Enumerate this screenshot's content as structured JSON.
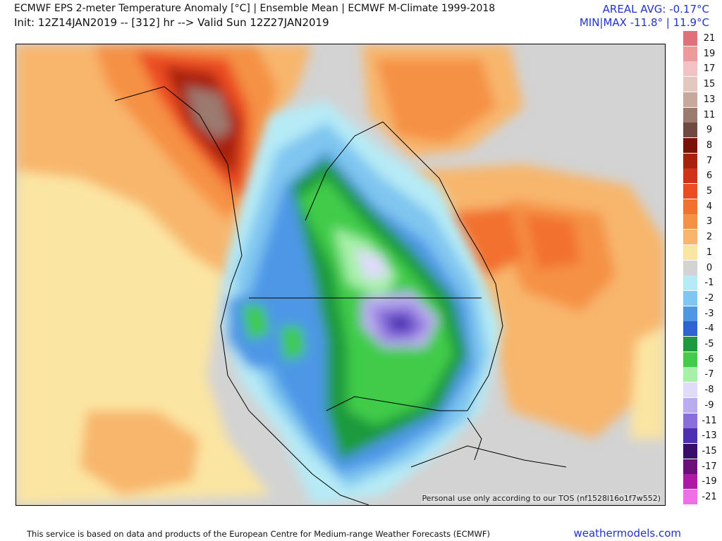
{
  "header": {
    "title": "ECMWF EPS 2-meter Temperature Anomaly [°C] | Ensemble Mean | ECMWF M-Climate 1999-2018",
    "init": "Init: 12Z14JAN2019 -- [312] hr --> Valid Sun 12Z27JAN2019",
    "areal_avg": "AREAL AVG: -0.17°C",
    "min_max": "MIN|MAX -11.8° | 11.9°C"
  },
  "map": {
    "watermark": "Personal use only according to our TOS (nf1528l16o1f7w552)"
  },
  "legend": {
    "items": [
      {
        "label": "21",
        "color": "#e0707a"
      },
      {
        "label": "19",
        "color": "#ed9a9a"
      },
      {
        "label": "17",
        "color": "#f4c2c2"
      },
      {
        "label": "15",
        "color": "#e3c8bf"
      },
      {
        "label": "13",
        "color": "#c8a89c"
      },
      {
        "label": "11",
        "color": "#9b7a70"
      },
      {
        "label": "9",
        "color": "#6e4a42"
      },
      {
        "label": "8",
        "color": "#7a1208"
      },
      {
        "label": "7",
        "color": "#a8200e"
      },
      {
        "label": "6",
        "color": "#cf3216"
      },
      {
        "label": "5",
        "color": "#eb4c21"
      },
      {
        "label": "4",
        "color": "#f2712e"
      },
      {
        "label": "3",
        "color": "#f59145"
      },
      {
        "label": "2",
        "color": "#f8b66c"
      },
      {
        "label": "1",
        "color": "#fbe5a2"
      },
      {
        "label": "0",
        "color": "#d3d3d3"
      },
      {
        "label": "-1",
        "color": "#b6ebf6"
      },
      {
        "label": "-2",
        "color": "#7fc6f0"
      },
      {
        "label": "-3",
        "color": "#4d97e6"
      },
      {
        "label": "-4",
        "color": "#2d63d3"
      },
      {
        "label": "-5",
        "color": "#1e9a3c"
      },
      {
        "label": "-6",
        "color": "#41cc4a"
      },
      {
        "label": "-7",
        "color": "#a6f0a8"
      },
      {
        "label": "-8",
        "color": "#dedcfa"
      },
      {
        "label": "-9",
        "color": "#b9acef"
      },
      {
        "label": "-11",
        "color": "#8a6fdc"
      },
      {
        "label": "-13",
        "color": "#4d2fb3"
      },
      {
        "label": "-15",
        "color": "#380e6a"
      },
      {
        "label": "-17",
        "color": "#6a1078"
      },
      {
        "label": "-19",
        "color": "#b019a6"
      },
      {
        "label": "-21",
        "color": "#f06ee6"
      }
    ]
  },
  "footer": {
    "attribution": "This service is based on data and products of the European Centre for Medium-range Weather Forecasts (ECMWF)",
    "brand": "weathermodels.com"
  }
}
